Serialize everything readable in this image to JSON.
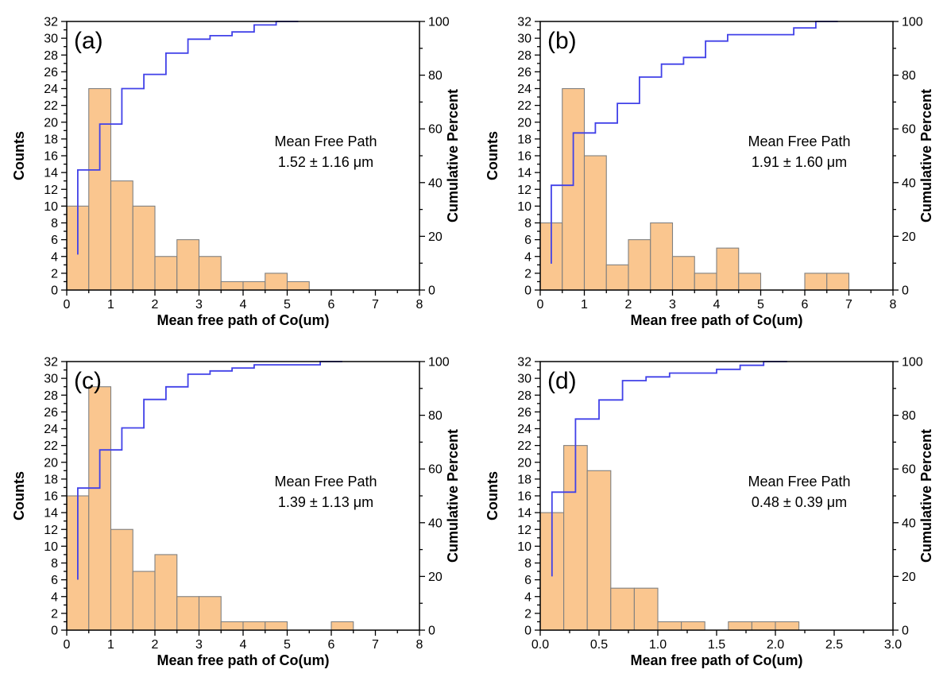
{
  "figure": {
    "background": "#FFFFFF",
    "style": {
      "bar_fill": "#FAC68F",
      "bar_edge": "#808080",
      "line_color": "#4141E8",
      "axis_color": "#000000",
      "text_color": "#000000"
    },
    "axes_shared": {
      "y_left": {
        "label": "Counts",
        "min": 0,
        "max": 32,
        "major_step": 2,
        "minor_step": 1
      },
      "y_right": {
        "label": "Cumulative Percent",
        "min": 0,
        "max": 100,
        "major_step": 20,
        "minor_step": 10
      }
    }
  },
  "chart_data": [
    {
      "panel_label": "(a)",
      "type": "bar",
      "subtype": "histogram_with_cumulative_step_line",
      "title": "",
      "xlabel": "Mean free path of Co(um)",
      "ylabel": "Counts",
      "ylabel_right": "Cumulative Percent",
      "xlim": [
        0,
        8
      ],
      "ylim_left": [
        0,
        32
      ],
      "ylim_right": [
        0,
        100
      ],
      "x_major_step": 1,
      "x_minor_step": 0.5,
      "x_tick_labels": [
        "0",
        "1",
        "2",
        "3",
        "4",
        "5",
        "6",
        "7",
        "8"
      ],
      "bins": {
        "start": 0,
        "width": 0.5
      },
      "counts": [
        10,
        24,
        13,
        10,
        4,
        6,
        4,
        1,
        1,
        2,
        1
      ],
      "total_count": 76,
      "cumulative_percent": [
        13.2,
        44.7,
        61.8,
        75.0,
        80.3,
        88.2,
        93.4,
        94.7,
        96.1,
        98.7,
        100.0
      ],
      "annotation": {
        "line1": "Mean Free Path",
        "line2": "1.52 ± 1.16 μm"
      },
      "legend": "none",
      "grid": "off"
    },
    {
      "panel_label": "(b)",
      "type": "bar",
      "subtype": "histogram_with_cumulative_step_line",
      "title": "",
      "xlabel": "Mean free path of Co(um)",
      "ylabel": "Counts",
      "ylabel_right": "Cumulative Percent",
      "xlim": [
        0,
        8
      ],
      "ylim_left": [
        0,
        32
      ],
      "ylim_right": [
        0,
        100
      ],
      "x_major_step": 1,
      "x_minor_step": 0.5,
      "x_tick_labels": [
        "0",
        "1",
        "2",
        "3",
        "4",
        "5",
        "6",
        "7",
        "8"
      ],
      "bins": {
        "start": 0,
        "width": 0.5
      },
      "counts": [
        8,
        24,
        16,
        3,
        6,
        8,
        4,
        2,
        5,
        2,
        0,
        0,
        2,
        2
      ],
      "total_count": 82,
      "cumulative_percent": [
        9.8,
        39.0,
        58.5,
        62.2,
        69.5,
        79.3,
        84.1,
        86.6,
        92.7,
        95.1,
        95.1,
        95.1,
        97.6,
        100.0
      ],
      "annotation": {
        "line1": "Mean Free Path",
        "line2": "1.91 ± 1.60 μm"
      },
      "legend": "none",
      "grid": "off"
    },
    {
      "panel_label": "(c)",
      "type": "bar",
      "subtype": "histogram_with_cumulative_step_line",
      "title": "",
      "xlabel": "Mean free path of Co(um)",
      "ylabel": "Counts",
      "ylabel_right": "Cumulative Percent",
      "xlim": [
        0,
        8
      ],
      "ylim_left": [
        0,
        32
      ],
      "ylim_right": [
        0,
        100
      ],
      "x_major_step": 1,
      "x_minor_step": 0.5,
      "x_tick_labels": [
        "0",
        "1",
        "2",
        "3",
        "4",
        "5",
        "6",
        "7",
        "8"
      ],
      "bins": {
        "start": 0,
        "width": 0.5
      },
      "counts": [
        16,
        29,
        12,
        7,
        9,
        4,
        4,
        1,
        1,
        1,
        0,
        0,
        1
      ],
      "total_count": 85,
      "cumulative_percent": [
        18.8,
        52.9,
        67.1,
        75.3,
        85.9,
        90.6,
        95.3,
        96.5,
        97.6,
        98.8,
        98.8,
        98.8,
        100.0
      ],
      "annotation": {
        "line1": "Mean Free Path",
        "line2": "1.39 ± 1.13 μm"
      },
      "legend": "none",
      "grid": "off"
    },
    {
      "panel_label": "(d)",
      "type": "bar",
      "subtype": "histogram_with_cumulative_step_line",
      "title": "",
      "xlabel": "Mean free path of Co(um)",
      "ylabel": "Counts",
      "ylabel_right": "Cumulative Percent",
      "xlim": [
        0,
        3
      ],
      "ylim_left": [
        0,
        32
      ],
      "ylim_right": [
        0,
        100
      ],
      "x_major_step": 0.5,
      "x_minor_step": 0.25,
      "x_tick_labels": [
        "0.0",
        "0.5",
        "1.0",
        "1.5",
        "2.0",
        "2.5",
        "3.0"
      ],
      "bins": {
        "start": 0,
        "width": 0.2
      },
      "counts": [
        14,
        22,
        19,
        5,
        5,
        1,
        1,
        0,
        1,
        1,
        1
      ],
      "total_count": 70,
      "cumulative_percent": [
        20.0,
        51.4,
        78.6,
        85.7,
        92.9,
        94.3,
        95.7,
        95.7,
        97.1,
        98.6,
        100.0
      ],
      "annotation": {
        "line1": "Mean Free Path",
        "line2": "0.48 ± 0.39 μm"
      },
      "legend": "none",
      "grid": "off"
    }
  ]
}
